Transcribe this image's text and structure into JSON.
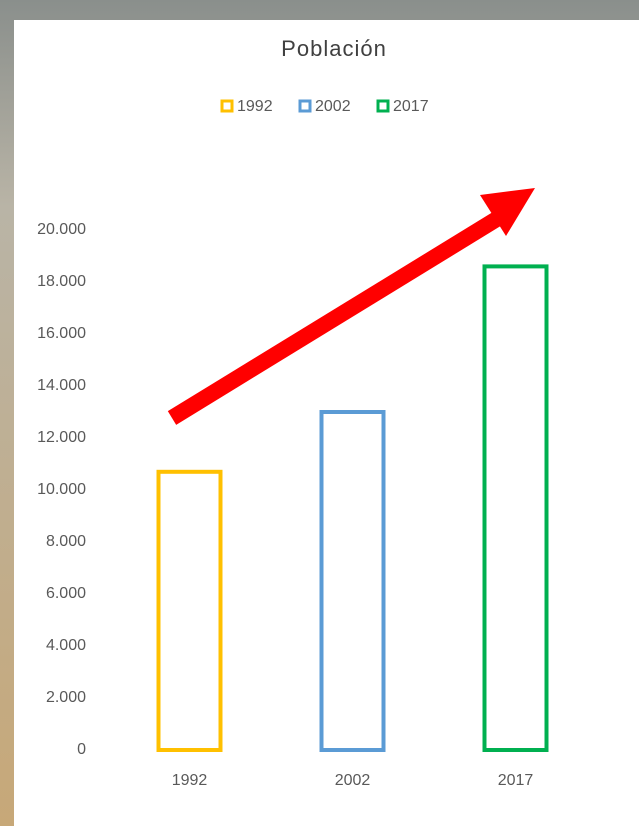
{
  "chart_data": {
    "type": "bar",
    "title": "Población",
    "categories": [
      "1992",
      "2002",
      "2017"
    ],
    "values": [
      10700,
      13000,
      18600
    ],
    "colors": [
      "#ffc000",
      "#5b9bd5",
      "#00b050"
    ],
    "ylim": [
      0,
      20000
    ],
    "yticks": [
      0,
      {
        "value": 2000,
        "label": "2.000"
      },
      {
        "value": 4000,
        "label": "4.000"
      },
      {
        "value": 6000,
        "label": "6.000"
      },
      {
        "value": 8000,
        "label": "8.000"
      },
      {
        "value": 10000,
        "label": "10.000"
      },
      {
        "value": 12000,
        "label": "12.000"
      },
      {
        "value": 14000,
        "label": "14.000"
      },
      {
        "value": 16000,
        "label": "16.000"
      },
      {
        "value": 18000,
        "label": "18.000"
      },
      {
        "value": 20000,
        "label": "20.000"
      }
    ],
    "grid": false
  }
}
